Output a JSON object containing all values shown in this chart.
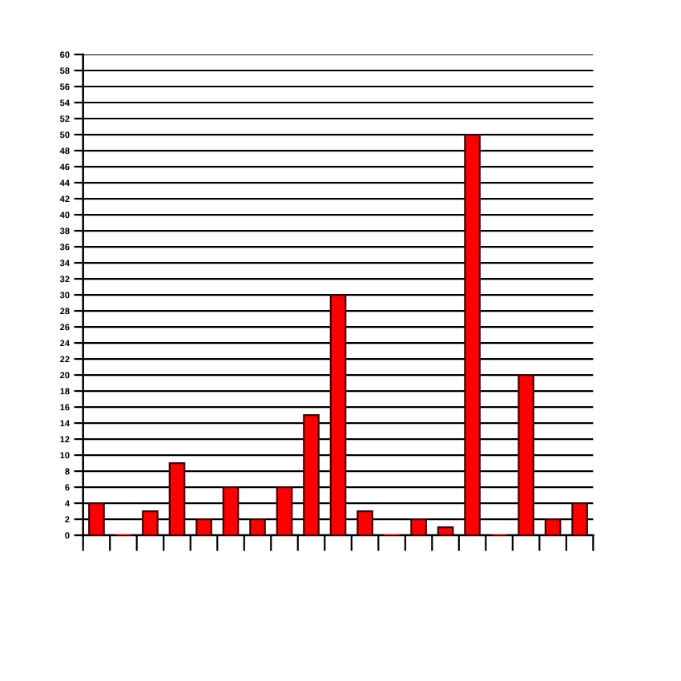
{
  "chart_data": {
    "type": "bar",
    "categories": [
      null,
      null,
      null,
      null,
      null,
      null,
      null,
      null,
      null,
      null,
      null,
      null,
      null,
      null,
      null,
      null,
      null,
      null,
      null
    ],
    "values": [
      4,
      0,
      3,
      9,
      2,
      6,
      2,
      6,
      15,
      30,
      3,
      0,
      2,
      1,
      50,
      0,
      20,
      2,
      4
    ],
    "color": "#ff0000",
    "ylim": [
      0,
      60
    ],
    "yticks": [
      0,
      2,
      4,
      6,
      8,
      10,
      12,
      14,
      16,
      18,
      20,
      22,
      24,
      26,
      28,
      30,
      32,
      34,
      36,
      38,
      40,
      42,
      44,
      46,
      48,
      50,
      52,
      54,
      56,
      58,
      60
    ],
    "grid": "y"
  }
}
